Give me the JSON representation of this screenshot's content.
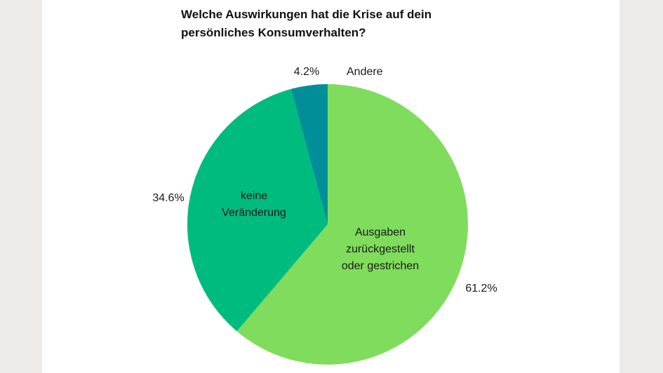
{
  "chart_data": {
    "type": "pie",
    "title": "Welche Auswirkungen hat die Krise auf dein\npersönliches Konsumverhalten?",
    "slices": [
      {
        "label_lines": [
          "Ausgaben",
          "zurückgestellt",
          "oder gestrichen"
        ],
        "value": 61.2,
        "value_label": "61.2%",
        "color": "#7fdc5c"
      },
      {
        "label_lines": [
          "keine",
          "Veränderung"
        ],
        "value": 34.6,
        "value_label": "34.6%",
        "color": "#00bb7e"
      },
      {
        "label_lines": [
          "Andere"
        ],
        "value": 4.2,
        "value_label": "4.2%",
        "color": "#008f98"
      }
    ],
    "start_angle": "12 o'clock, clockwise",
    "legend": "none"
  }
}
